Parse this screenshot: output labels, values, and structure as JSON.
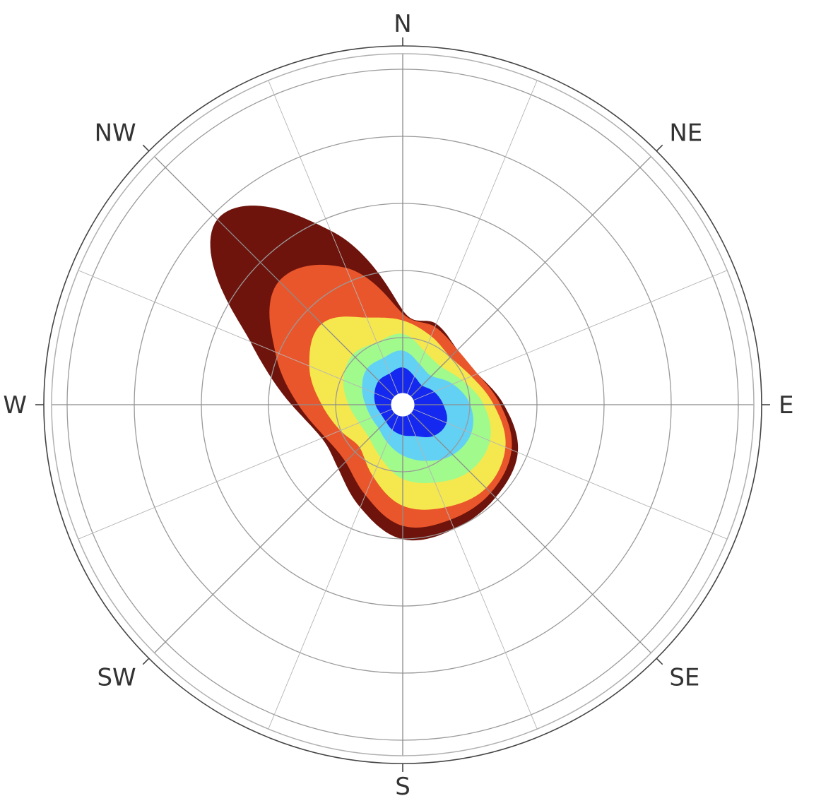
{
  "chart_data": {
    "type": "polar-area",
    "title": "",
    "compass_labels": [
      "N",
      "NE",
      "E",
      "SE",
      "S",
      "SW",
      "W",
      "NW"
    ],
    "grid": true,
    "radial_ticks_visible": false,
    "radial_max": 1.0,
    "radial_grid": [
      0.2,
      0.4,
      0.6,
      0.8
    ],
    "angular_grid_step_deg": 22.5,
    "inner_hole": 0.035,
    "directions_deg": [
      0,
      22.5,
      45,
      67.5,
      90,
      112.5,
      135,
      157.5,
      180,
      202.5,
      225,
      247.5,
      270,
      292.5,
      315,
      337.5
    ],
    "series": [
      {
        "color": "#1428f0",
        "values": [
          0.11,
          0.09,
          0.08,
          0.1,
          0.12,
          0.14,
          0.13,
          0.1,
          0.09,
          0.08,
          0.07,
          0.07,
          0.08,
          0.09,
          0.1,
          0.1
        ]
      },
      {
        "color": "#62d1f4",
        "values": [
          0.16,
          0.13,
          0.12,
          0.16,
          0.2,
          0.22,
          0.21,
          0.18,
          0.15,
          0.12,
          0.1,
          0.1,
          0.11,
          0.13,
          0.15,
          0.15
        ]
      },
      {
        "color": "#a0fa8c",
        "values": [
          0.21,
          0.17,
          0.16,
          0.19,
          0.24,
          0.28,
          0.28,
          0.25,
          0.22,
          0.17,
          0.14,
          0.14,
          0.16,
          0.19,
          0.21,
          0.2
        ]
      },
      {
        "color": "#f5e84e",
        "values": [
          0.25,
          0.22,
          0.2,
          0.22,
          0.27,
          0.33,
          0.35,
          0.33,
          0.3,
          0.23,
          0.18,
          0.2,
          0.24,
          0.3,
          0.34,
          0.28
        ]
      },
      {
        "color": "#ea562b",
        "values": [
          0.27,
          0.25,
          0.23,
          0.24,
          0.29,
          0.35,
          0.37,
          0.37,
          0.36,
          0.29,
          0.24,
          0.25,
          0.31,
          0.41,
          0.52,
          0.44
        ]
      },
      {
        "color": "#6e140c",
        "values": [
          0.28,
          0.26,
          0.23,
          0.24,
          0.3,
          0.37,
          0.39,
          0.4,
          0.4,
          0.33,
          0.27,
          0.26,
          0.33,
          0.49,
          0.78,
          0.56
        ]
      }
    ]
  }
}
